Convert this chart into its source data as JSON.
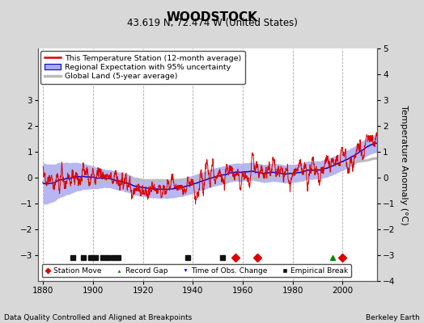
{
  "title": "WOODSTOCK",
  "subtitle": "43.619 N, 72.474 W (United States)",
  "xlabel_bottom": "Data Quality Controlled and Aligned at Breakpoints",
  "xlabel_right": "Berkeley Earth",
  "ylabel": "Temperature Anomaly (°C)",
  "xlim": [
    1878,
    2014
  ],
  "ylim": [
    -4,
    5
  ],
  "yticks_left": [
    -3,
    -2,
    -1,
    0,
    1,
    2,
    3
  ],
  "yticks_right": [
    -4,
    -3,
    -2,
    -1,
    0,
    1,
    2,
    3,
    4,
    5
  ],
  "xticks": [
    1880,
    1900,
    1920,
    1940,
    1960,
    1980,
    2000
  ],
  "bg_color": "#d8d8d8",
  "plot_bg_color": "#ffffff",
  "grid_color": "#cccccc",
  "station_line_color": "#dd0000",
  "regional_line_color": "#0000dd",
  "regional_fill_color": "#aaaaee",
  "global_line_color": "#bbbbbb",
  "legend_entries": [
    "This Temperature Station (12-month average)",
    "Regional Expectation with 95% uncertainty",
    "Global Land (5-year average)"
  ],
  "marker_legend": [
    {
      "symbol": "D",
      "color": "#dd0000",
      "label": "Station Move"
    },
    {
      "symbol": "^",
      "color": "#008800",
      "label": "Record Gap"
    },
    {
      "symbol": "v",
      "color": "#0000dd",
      "label": "Time of Obs. Change"
    },
    {
      "symbol": "s",
      "color": "#111111",
      "label": "Empirical Break"
    }
  ],
  "station_moves": [
    1957,
    1966,
    2000
  ],
  "obs_changes": [],
  "empirical_breaks": [
    1892,
    1896,
    1899,
    1901,
    1904,
    1906,
    1908,
    1910,
    1938,
    1952
  ],
  "record_gaps": [
    1996
  ],
  "marker_y": -3.1,
  "seed": 12345
}
